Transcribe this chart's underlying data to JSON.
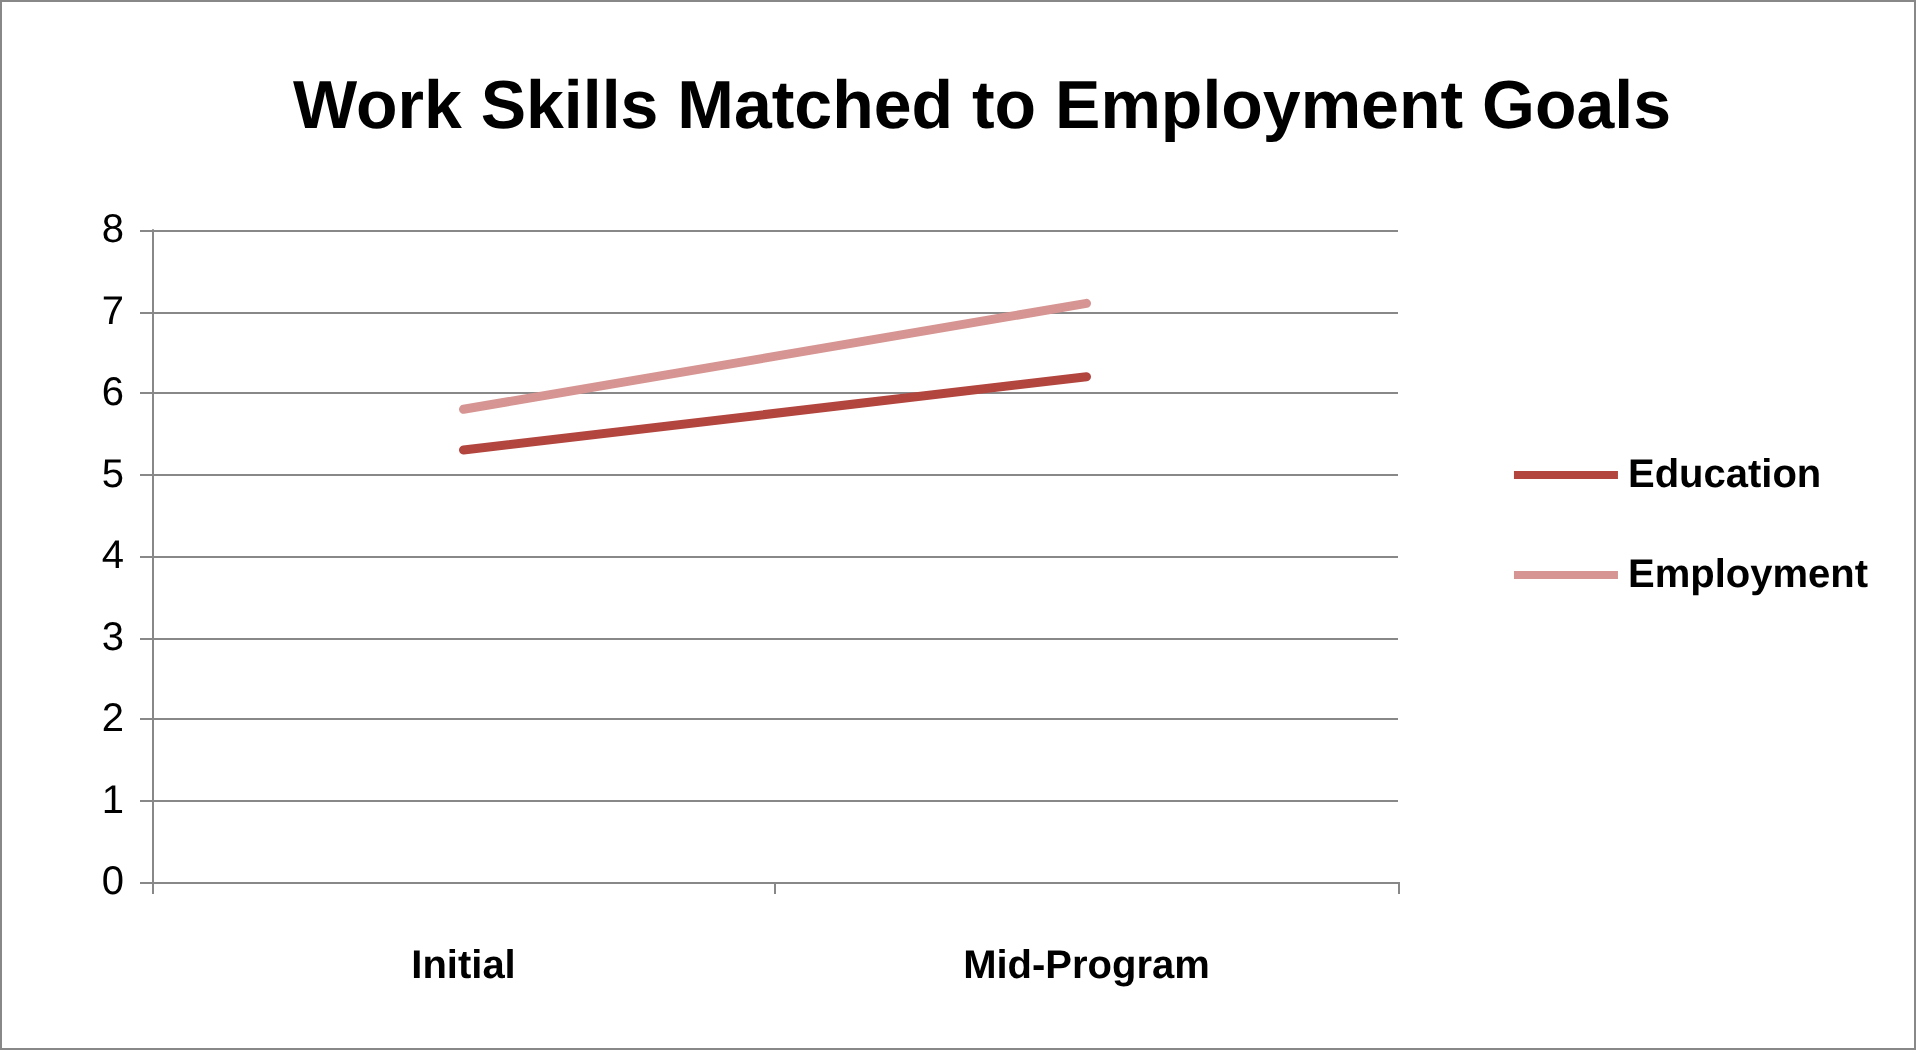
{
  "chart_data": {
    "type": "line",
    "title": "Work Skills Matched to Employment Goals",
    "categories": [
      "Initial",
      "Mid-Program"
    ],
    "series": [
      {
        "name": "Education",
        "color": "#b3453f",
        "values": [
          5.3,
          6.2
        ]
      },
      {
        "name": "Employment",
        "color": "#d69592",
        "values": [
          5.8,
          7.1
        ]
      }
    ],
    "ylim": [
      0,
      8
    ],
    "yticks": [
      0,
      1,
      2,
      3,
      4,
      5,
      6,
      7,
      8
    ],
    "grid": "y",
    "legend": "right",
    "marker": "none",
    "line_style": "solid"
  }
}
